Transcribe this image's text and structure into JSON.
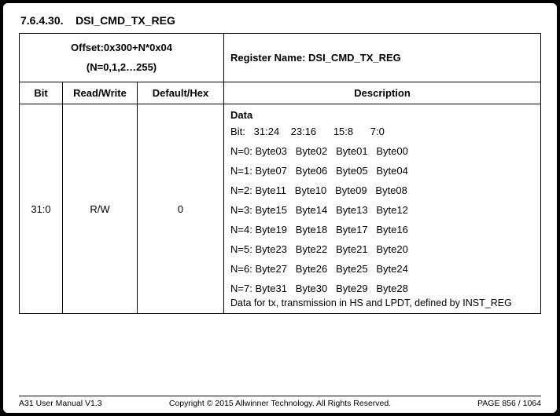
{
  "section": {
    "number": "7.6.4.30.",
    "name": "DSI_CMD_TX_REG"
  },
  "offset": {
    "line1": "Offset:0x300+N*0x04",
    "line2": "(N=0,1,2…255)"
  },
  "regname": {
    "label": "Register Name:",
    "value": "DSI_CMD_TX_REG"
  },
  "headers": {
    "bit": "Bit",
    "rw": "Read/Write",
    "def": "Default/Hex",
    "desc": "Description"
  },
  "row": {
    "bit": "31:0",
    "rw": "R/W",
    "def": "0"
  },
  "desc": {
    "data_title": "Data",
    "bit_header": "Bit:   31:24    23:16      15:8      7:0",
    "lines": [
      "N=0: Byte03   Byte02   Byte01   Byte00",
      "N=1: Byte07   Byte06   Byte05   Byte04",
      "N=2: Byte11   Byte10   Byte09   Byte08",
      "N=3: Byte15   Byte14   Byte13   Byte12",
      "N=4: Byte19   Byte18   Byte17   Byte16",
      "N=5: Byte23   Byte22   Byte21   Byte20",
      "N=6: Byte27   Byte26   Byte25   Byte24",
      "N=7: Byte31   Byte30   Byte29   Byte28"
    ],
    "footnote": "Data for tx, transmission in HS and LPDT, defined by INST_REG"
  },
  "footer": {
    "left": "A31 User Manual V1.3",
    "center": "Copyright © 2015 Allwinner Technology. All Rights Reserved.",
    "right": "PAGE 856 / 1064"
  }
}
